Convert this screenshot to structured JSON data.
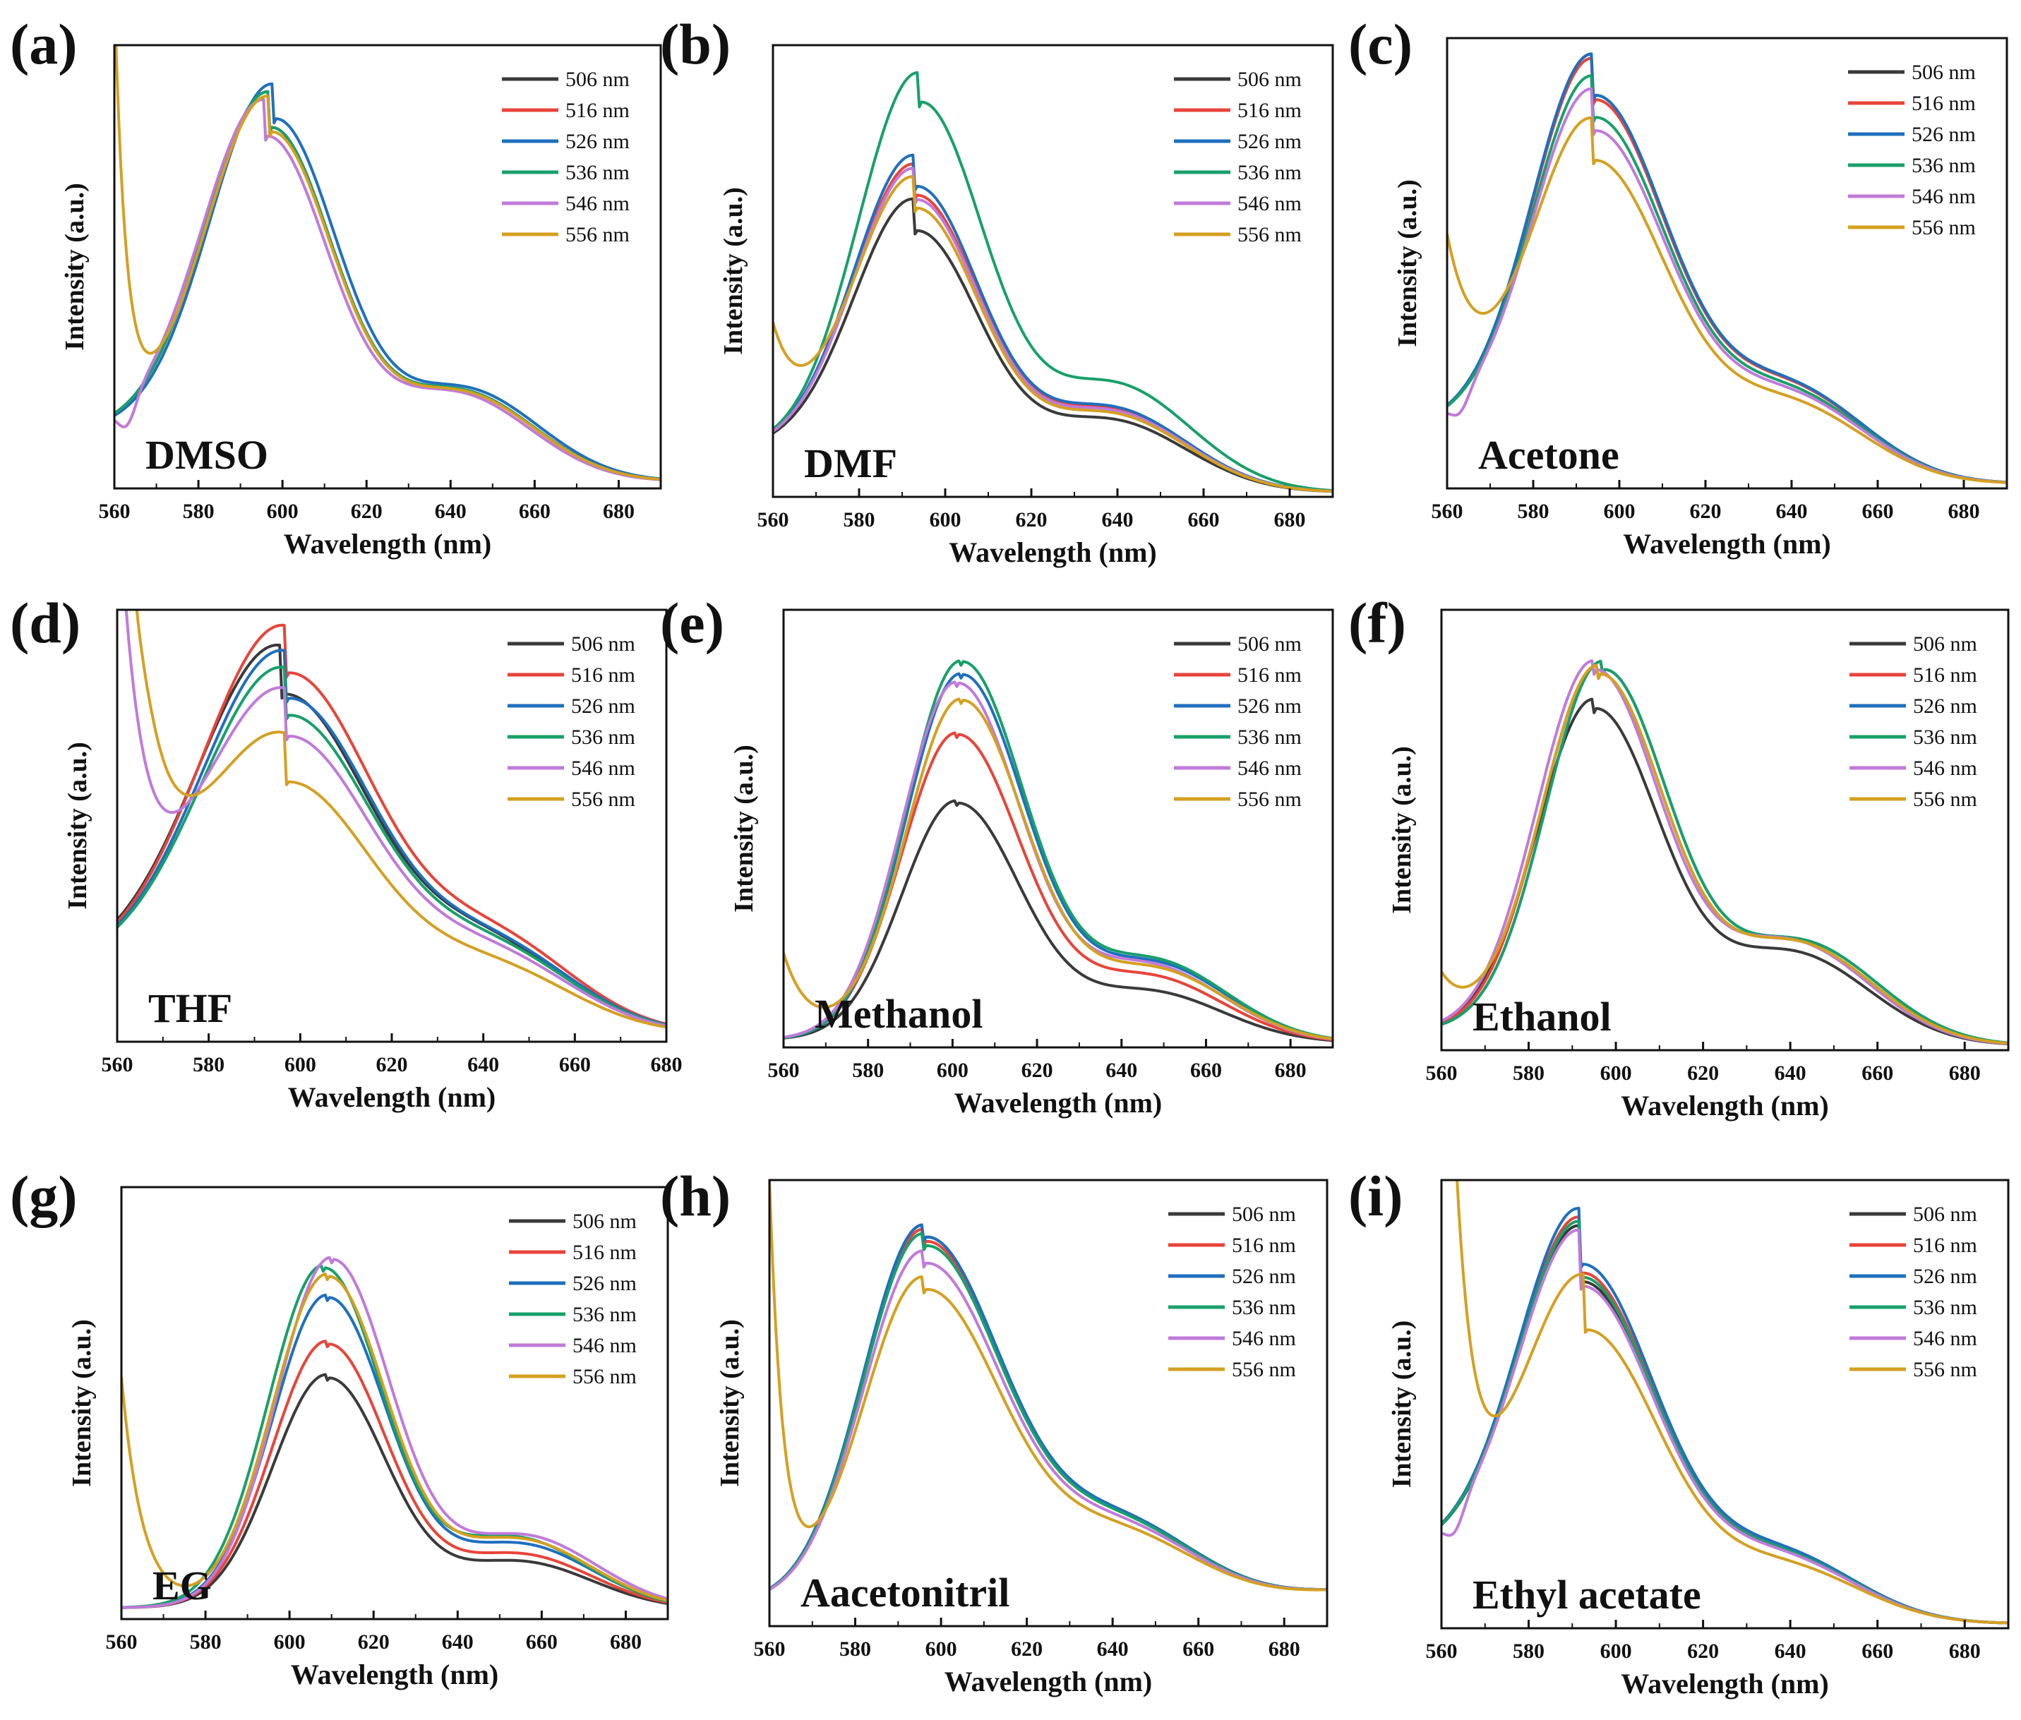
{
  "figure": {
    "legend_labels": [
      "506 nm",
      "516 nm",
      "526 nm",
      "536 nm",
      "546 nm",
      "556 nm"
    ],
    "legend_colors": [
      "#3a3a3a",
      "#e8443a",
      "#1f6fbf",
      "#18a06a",
      "#c07ad9",
      "#d4a021"
    ]
  },
  "chart_data": [
    {
      "panel": "(a)",
      "solvent": "DMSO",
      "type": "line",
      "xlabel": "Wavelength (nm)",
      "ylabel": "Intensity (a.u.)",
      "xlim": [
        560,
        690
      ],
      "ylim": [
        0,
        1
      ],
      "xticks": [
        560,
        580,
        600,
        620,
        640,
        660,
        680
      ],
      "peak_wavelength": 597,
      "width_left": 15,
      "width_right": 15,
      "shoulder": 0.26,
      "baseline": 0.15,
      "tail_end": 0.015,
      "peaks": [
        0.83,
        0.83,
        0.85,
        0.83,
        0.81,
        0.82
      ],
      "peak_shift": [
        0,
        0,
        1,
        0,
        -1,
        0
      ],
      "excitation_tail": [
        0,
        0,
        0,
        0,
        0,
        0.98
      ],
      "tail_decay": [
        2.5,
        2.5,
        2.5,
        2.5,
        2.5,
        2.8
      ],
      "dip": [
        0,
        0,
        0,
        0,
        0.06,
        0
      ]
    },
    {
      "panel": "(b)",
      "solvent": "DMF",
      "type": "line",
      "xlabel": "Wavelength (nm)",
      "ylabel": "Intensity (a.u.)",
      "xlim": [
        560,
        690
      ],
      "ylim": [
        0,
        1
      ],
      "xticks": [
        560,
        580,
        600,
        620,
        640,
        660,
        680
      ],
      "peak_wavelength": 593,
      "width_left": 14,
      "width_right": 15,
      "shoulder": 0.28,
      "baseline": 0.12,
      "tail_end": 0.01,
      "peaks": [
        0.6,
        0.68,
        0.7,
        0.89,
        0.67,
        0.65
      ],
      "peak_shift": [
        0,
        0,
        0,
        1,
        0,
        0
      ],
      "excitation_tail": [
        0,
        0,
        0,
        0,
        0,
        0.25
      ],
      "tail_decay": [
        2,
        2,
        2,
        2,
        2,
        6
      ],
      "dip": [
        0,
        0,
        0,
        0,
        0,
        0
      ]
    },
    {
      "panel": "(c)",
      "solvent": "Acetone",
      "type": "line",
      "xlabel": "Wavelength (nm)",
      "ylabel": "Intensity (a.u.)",
      "xlim": [
        560,
        690
      ],
      "ylim": [
        0,
        1
      ],
      "xticks": [
        560,
        580,
        600,
        620,
        640,
        660,
        680
      ],
      "peak_wavelength": 594,
      "width_left": 14,
      "width_right": 17,
      "shoulder": 0.25,
      "baseline": 0.16,
      "tail_end": 0.01,
      "peaks": [
        0.89,
        0.88,
        0.89,
        0.84,
        0.81,
        0.74
      ],
      "peak_shift": [
        0,
        0,
        0,
        0,
        0,
        0
      ],
      "excitation_tail": [
        0,
        0,
        0,
        0,
        0,
        0.4
      ],
      "tail_decay": [
        2,
        2,
        2,
        2,
        2,
        7
      ],
      "dip": [
        0,
        0,
        0,
        0,
        0.04,
        0
      ]
    },
    {
      "panel": "(d)",
      "solvent": "THF",
      "type": "line",
      "xlabel": "Wavelength (nm)",
      "ylabel": "Intensity (a.u.)",
      "xlim": [
        560,
        680
      ],
      "ylim": [
        0,
        1
      ],
      "xticks": [
        560,
        580,
        600,
        620,
        640,
        660,
        680
      ],
      "peak_wavelength": 597,
      "width_left": 18,
      "width_right": 19,
      "shoulder": 0.26,
      "baseline": 0.2,
      "tail_end": 0.02,
      "peaks": [
        0.82,
        0.87,
        0.81,
        0.77,
        0.72,
        0.61
      ],
      "peak_shift": [
        -1,
        0,
        0,
        0,
        0,
        0
      ],
      "excitation_tail": [
        0,
        0,
        0,
        0,
        1.1,
        1.6
      ],
      "tail_decay": [
        2,
        2,
        2,
        2,
        5,
        6
      ],
      "dip": [
        0,
        0,
        0,
        0,
        0,
        0.06
      ]
    },
    {
      "panel": "(e)",
      "solvent": "Methanol",
      "type": "line",
      "xlabel": "Wavelength (nm)",
      "ylabel": "Intensity (a.u.)",
      "xlim": [
        560,
        690
      ],
      "ylim": [
        0,
        1
      ],
      "xticks": [
        560,
        580,
        600,
        620,
        640,
        660,
        680
      ],
      "peak_wavelength": 601,
      "width_left": 13,
      "width_right": 15,
      "shoulder": 0.22,
      "baseline": 0.02,
      "tail_end": 0.01,
      "peaks": [
        0.57,
        0.73,
        0.87,
        0.9,
        0.85,
        0.81
      ],
      "peak_shift": [
        0,
        0,
        1,
        1,
        0,
        1
      ],
      "excitation_tail": [
        0,
        0,
        0,
        0,
        0,
        0.2
      ],
      "tail_decay": [
        2,
        2,
        2,
        2,
        2,
        6
      ],
      "dip": [
        0,
        0,
        0,
        0,
        0,
        0
      ]
    },
    {
      "panel": "(f)",
      "solvent": "Ethanol",
      "type": "line",
      "xlabel": "Wavelength (nm)",
      "ylabel": "Intensity (a.u.)",
      "xlim": [
        560,
        690
      ],
      "ylim": [
        0,
        1
      ],
      "xticks": [
        560,
        580,
        600,
        620,
        640,
        660,
        680
      ],
      "peak_wavelength": 595,
      "width_left": 13,
      "width_right": 15,
      "shoulder": 0.28,
      "baseline": 0.05,
      "tail_end": 0.01,
      "peaks": [
        0.79,
        0.87,
        0.88,
        0.88,
        0.88,
        0.87
      ],
      "peak_shift": [
        0,
        1,
        2,
        2,
        0,
        1
      ],
      "excitation_tail": [
        0,
        0,
        0,
        0,
        0,
        0.12
      ],
      "tail_decay": [
        2,
        2,
        2,
        2,
        2,
        6
      ],
      "dip": [
        0,
        0,
        0,
        0,
        0,
        0
      ]
    },
    {
      "panel": "(g)",
      "solvent": "EG",
      "type": "line",
      "xlabel": "Wavelength (nm)",
      "ylabel": "Intensity (a.u.)",
      "xlim": [
        560,
        690
      ],
      "ylim": [
        0,
        1
      ],
      "xticks": [
        560,
        580,
        600,
        620,
        640,
        660,
        680
      ],
      "peak_wavelength": 609,
      "width_left": 13,
      "width_right": 14,
      "shoulder": 0.22,
      "baseline": 0.03,
      "tail_end": 0.02,
      "peaks": [
        0.57,
        0.65,
        0.76,
        0.83,
        0.85,
        0.81
      ],
      "peak_shift": [
        0,
        0,
        0,
        -1,
        1,
        0
      ],
      "excitation_tail": [
        0,
        0,
        0,
        0,
        0,
        0.55
      ],
      "tail_decay": [
        2,
        2,
        2,
        2,
        2,
        5
      ],
      "dip": [
        0,
        0,
        0,
        0,
        0,
        0
      ]
    },
    {
      "panel": "(h)",
      "solvent": "Aacetonitril",
      "type": "line",
      "xlabel": "Wavelength (nm)",
      "ylabel": "Intensity (a.u.)",
      "xlim": [
        560,
        690
      ],
      "ylim": [
        0,
        1
      ],
      "xticks": [
        560,
        580,
        600,
        620,
        640,
        660,
        680
      ],
      "peak_wavelength": 596,
      "width_left": 14,
      "width_right": 18,
      "shoulder": 0.22,
      "baseline": 0.06,
      "tail_end": 0.08,
      "peaks": [
        0.89,
        0.88,
        0.89,
        0.87,
        0.83,
        0.77
      ],
      "peak_shift": [
        0,
        0,
        0,
        0,
        0,
        0
      ],
      "excitation_tail": [
        0,
        0,
        0,
        0,
        0,
        0.95
      ],
      "tail_decay": [
        2,
        2,
        2,
        2,
        2,
        3.2
      ],
      "dip": [
        0,
        0,
        0,
        0,
        0,
        0
      ]
    },
    {
      "panel": "(i)",
      "solvent": "Ethyl acetate",
      "type": "line",
      "xlabel": "Wavelength (nm)",
      "ylabel": "Intensity (a.u.)",
      "xlim": [
        560,
        690
      ],
      "ylim": [
        0,
        1
      ],
      "xticks": [
        560,
        580,
        600,
        620,
        640,
        660,
        680
      ],
      "peak_wavelength": 592,
      "width_left": 14,
      "width_right": 17,
      "shoulder": 0.2,
      "baseline": 0.2,
      "tail_end": 0.01,
      "peaks": [
        0.79,
        0.81,
        0.83,
        0.8,
        0.78,
        0.68
      ],
      "peak_shift": [
        0,
        0,
        0,
        0,
        0,
        1
      ],
      "excitation_tail": [
        0,
        0,
        0,
        0,
        0,
        1.9
      ],
      "tail_decay": [
        2,
        2,
        2,
        2,
        2,
        4
      ],
      "dip": [
        0,
        0,
        0,
        0,
        0.05,
        0
      ]
    }
  ]
}
